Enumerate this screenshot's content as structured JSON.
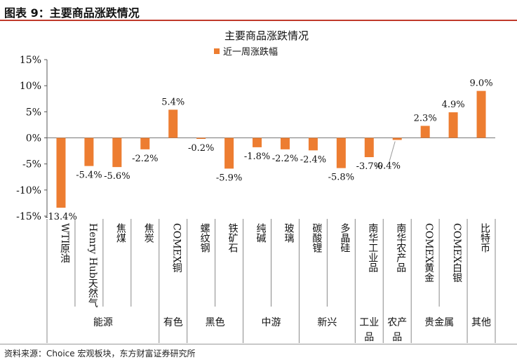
{
  "figure_label": "图表 9：主要商品涨跌情况",
  "source_note": "资料来源：Choice 宏观板块，东方财富证券研究所",
  "chart_data": {
    "type": "bar",
    "title": "主要商品涨跌情况",
    "legend": [
      "近一周涨跌幅"
    ],
    "legend_position": "top",
    "series": [
      {
        "name": "近一周涨跌幅",
        "color": "#ED7D31",
        "values": [
          -13.4,
          -5.4,
          -5.6,
          -2.2,
          5.4,
          -0.2,
          -5.9,
          -1.8,
          -2.2,
          -2.4,
          -5.8,
          -3.7,
          -0.4,
          2.3,
          4.9,
          9.0
        ]
      }
    ],
    "categories": [
      "WTI原油",
      "Henry Hub天然气",
      "焦煤",
      "焦炭",
      "COMEX铜",
      "螺纹钢",
      "铁矿石",
      "纯碱",
      "玻璃",
      "碳酸锂",
      "多晶硅",
      "南华工业品",
      "南华农产品",
      "COMEX黄金",
      "COMEX白银",
      "比特币"
    ],
    "data_labels": [
      "-13.4%",
      "-5.4%",
      "-5.6%",
      "-2.2%",
      "5.4%",
      "-0.2%",
      "-5.9%",
      "-1.8%",
      "-2.2%",
      "-2.4%",
      "-5.8%",
      "-3.7%",
      "-0.4%",
      "2.3%",
      "4.9%",
      "9.0%"
    ],
    "groups": [
      {
        "label": "能源",
        "start": 0,
        "end": 3
      },
      {
        "label": "有色",
        "start": 4,
        "end": 4
      },
      {
        "label": "黑色",
        "start": 5,
        "end": 6
      },
      {
        "label": "中游",
        "start": 7,
        "end": 8
      },
      {
        "label": "新兴",
        "start": 9,
        "end": 10
      },
      {
        "label": "工业品",
        "start": 11,
        "end": 11
      },
      {
        "label": "农产品",
        "start": 12,
        "end": 12
      },
      {
        "label": "贵金属",
        "start": 13,
        "end": 14
      },
      {
        "label": "其他",
        "start": 15,
        "end": 15
      }
    ],
    "ylim": [
      -15,
      15
    ],
    "yticks": [
      -15,
      -10,
      -5,
      0,
      5,
      10,
      15
    ],
    "ytick_labels": [
      "-15%",
      "-10%",
      "-5%",
      "0%",
      "5%",
      "10%",
      "15%"
    ],
    "grid": false
  }
}
